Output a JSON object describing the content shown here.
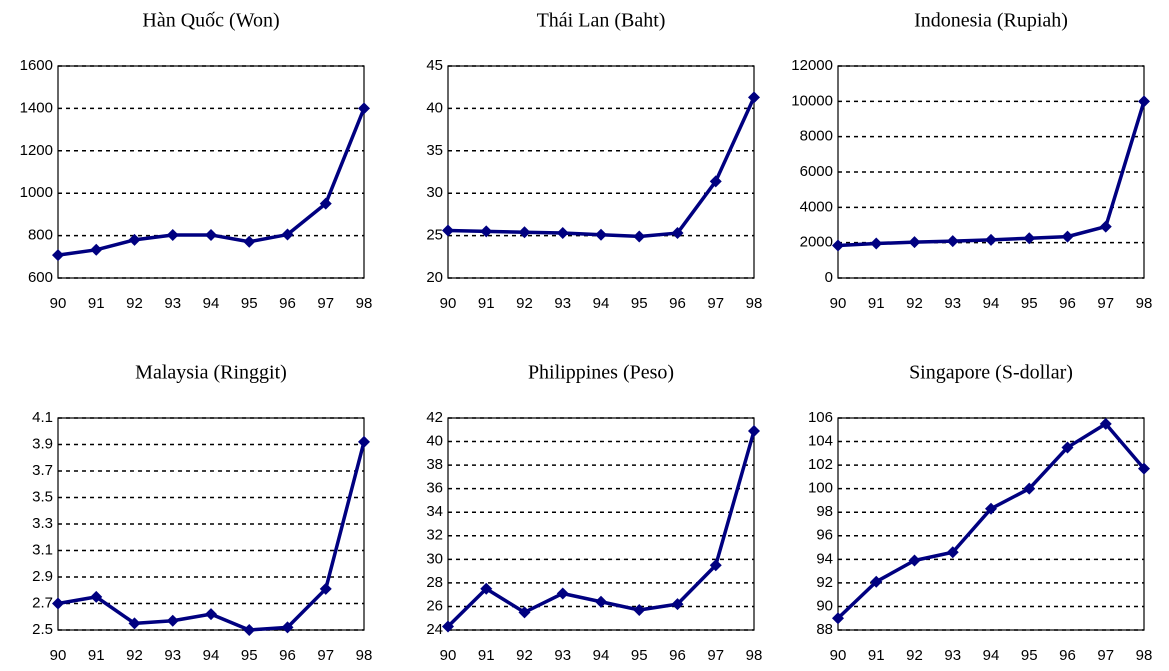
{
  "chart_data": [
    {
      "type": "line",
      "title": "Hàn Quốc (Won)",
      "categories": [
        "90",
        "91",
        "92",
        "93",
        "94",
        "95",
        "96",
        "97",
        "98"
      ],
      "series": [
        {
          "name": "Hàn Quốc",
          "color": "#000080",
          "values": [
            708,
            733,
            780,
            803,
            803,
            771,
            805,
            951,
            1400
          ]
        }
      ],
      "ylim": [
        600,
        1600
      ],
      "yticks": [
        600,
        800,
        1000,
        1200,
        1400,
        1600
      ],
      "grid": true
    },
    {
      "type": "line",
      "title": "Thái Lan (Baht)",
      "categories": [
        "90",
        "91",
        "92",
        "93",
        "94",
        "95",
        "96",
        "97",
        "98"
      ],
      "series": [
        {
          "name": "Thái Lan",
          "color": "#000080",
          "values": [
            25.6,
            25.5,
            25.4,
            25.3,
            25.1,
            24.9,
            25.3,
            31.4,
            41.3
          ]
        }
      ],
      "ylim": [
        20,
        45
      ],
      "yticks": [
        20,
        25,
        30,
        35,
        40,
        45
      ],
      "grid": true
    },
    {
      "type": "line",
      "title": "Indonesia (Rupiah)",
      "categories": [
        "90",
        "91",
        "92",
        "93",
        "94",
        "95",
        "96",
        "97",
        "98"
      ],
      "series": [
        {
          "name": "Indonesia",
          "color": "#000080",
          "values": [
            1843,
            1950,
            2030,
            2087,
            2161,
            2249,
            2342,
            2909,
            10000
          ]
        }
      ],
      "ylim": [
        0,
        12000
      ],
      "yticks": [
        0,
        2000,
        4000,
        6000,
        8000,
        10000,
        12000
      ],
      "grid": true
    },
    {
      "type": "line",
      "title": "Malaysia (Ringgit)",
      "categories": [
        "90",
        "91",
        "92",
        "93",
        "94",
        "95",
        "96",
        "97",
        "98"
      ],
      "series": [
        {
          "name": "Malaysia",
          "color": "#000080",
          "values": [
            2.7,
            2.75,
            2.55,
            2.57,
            2.62,
            2.5,
            2.52,
            2.81,
            3.92
          ]
        }
      ],
      "ylim": [
        2.5,
        4.1
      ],
      "yticks": [
        2.5,
        2.7,
        2.9,
        3.1,
        3.3,
        3.5,
        3.7,
        3.9,
        4.1
      ],
      "grid": true
    },
    {
      "type": "line",
      "title": "Philippines (Peso)",
      "categories": [
        "90",
        "91",
        "92",
        "93",
        "94",
        "95",
        "96",
        "97",
        "98"
      ],
      "series": [
        {
          "name": "Philippines",
          "color": "#000080",
          "values": [
            24.3,
            27.5,
            25.5,
            27.1,
            26.4,
            25.7,
            26.2,
            29.5,
            40.9
          ]
        }
      ],
      "ylim": [
        24,
        42
      ],
      "yticks": [
        24,
        26,
        28,
        30,
        32,
        34,
        36,
        38,
        40,
        42
      ],
      "grid": true
    },
    {
      "type": "line",
      "title": "Singapore (S-dollar)",
      "categories": [
        "90",
        "91",
        "92",
        "93",
        "94",
        "95",
        "96",
        "97",
        "98"
      ],
      "series": [
        {
          "name": "Singapore",
          "color": "#000080",
          "values": [
            89.0,
            92.1,
            93.9,
            94.6,
            98.3,
            100.0,
            103.5,
            105.5,
            101.7
          ]
        }
      ],
      "ylim": [
        88,
        106
      ],
      "yticks": [
        88,
        90,
        92,
        94,
        96,
        98,
        100,
        102,
        104,
        106
      ],
      "grid": true
    }
  ]
}
